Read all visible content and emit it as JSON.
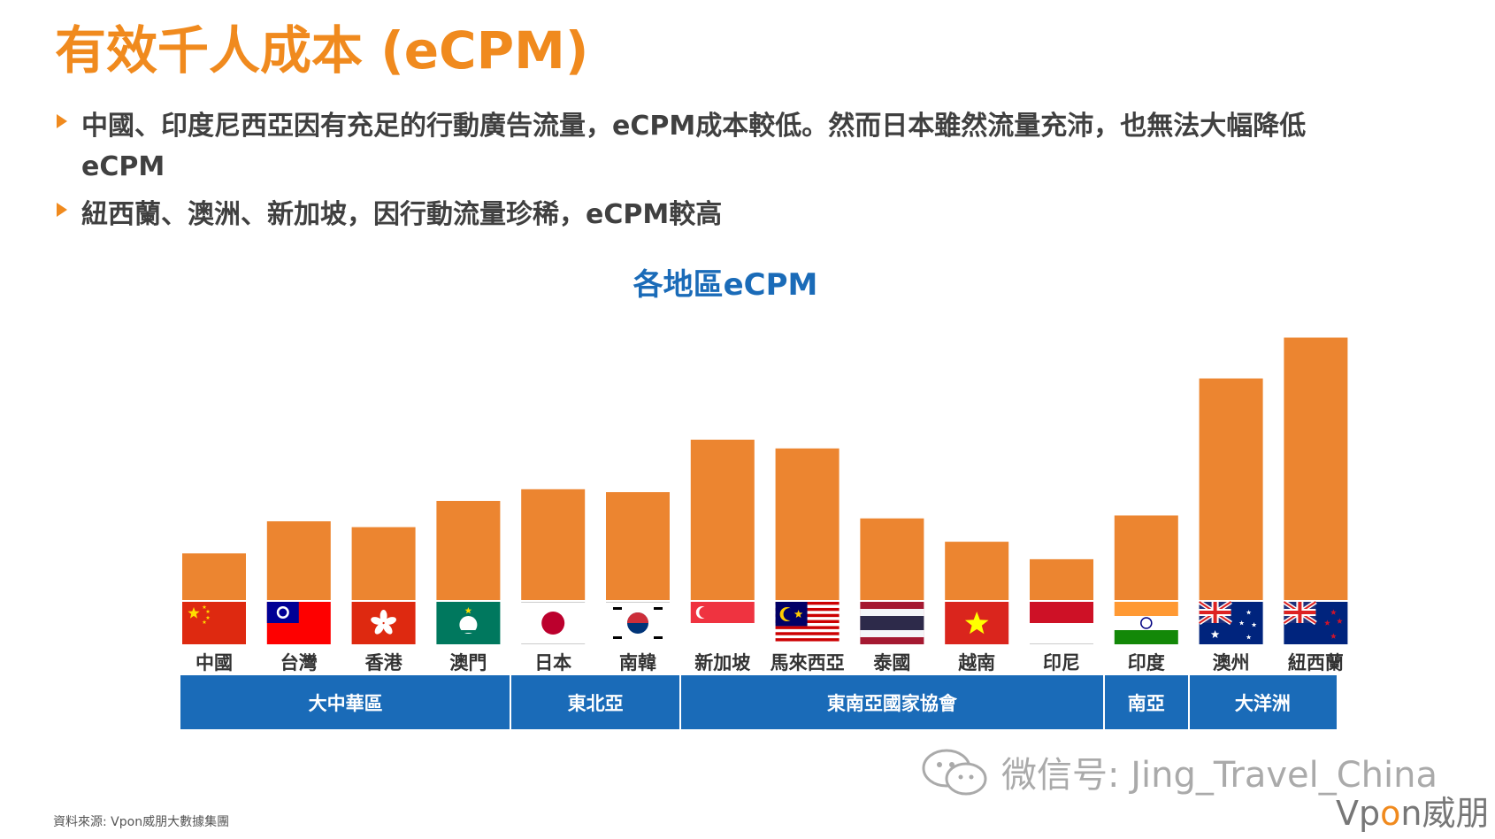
{
  "title": "有效千人成本 (eCPM)",
  "bullets": [
    "中國、印度尼西亞因有充足的行動廣告流量，eCPM成本較低。然而日本雖然流量充沛，也無法大幅降低eCPM",
    "紐西蘭、澳洲、新加坡，因行動流量珍稀，eCPM較高"
  ],
  "chart_data": {
    "type": "bar",
    "title": "各地區eCPM",
    "categories": [
      "中國",
      "台灣",
      "香港",
      "澳門",
      "日本",
      "南韓",
      "新加坡",
      "馬來西亞",
      "泰國",
      "越南",
      "印尼",
      "印度",
      "澳州",
      "紐西蘭"
    ],
    "values": [
      16,
      27,
      25,
      34,
      38,
      37,
      55,
      52,
      28,
      20,
      14,
      29,
      76,
      90
    ],
    "ylim": [
      0,
      95
    ],
    "bar_color": "#EC8530",
    "xlabel": "",
    "ylabel": "",
    "flags": [
      "china-flag",
      "taiwan-flag",
      "hong-kong-flag",
      "macau-flag",
      "japan-flag",
      "south-korea-flag",
      "singapore-flag",
      "malaysia-flag",
      "thailand-flag",
      "vietnam-flag",
      "indonesia-flag",
      "india-flag",
      "australia-flag",
      "new-zealand-flag"
    ],
    "regions": [
      {
        "label": "大中華區",
        "span": [
          0,
          3
        ]
      },
      {
        "label": "東北亞",
        "span": [
          4,
          5
        ]
      },
      {
        "label": "東南亞國家協會",
        "span": [
          6,
          10
        ]
      },
      {
        "label": "南亞",
        "span": [
          11,
          11
        ]
      },
      {
        "label": "大洋洲",
        "span": [
          12,
          13
        ]
      }
    ]
  },
  "colors": {
    "accent": "#F08A1E",
    "region": "#1A6BB8",
    "text": "#404040"
  },
  "watermark": "微信号: Jing_Travel_China",
  "logo": {
    "brand_v": "Vp",
    "brand_o": "o",
    "brand_n": "n",
    "brand_cn": "威朋"
  },
  "source": "資料來源: Vpon威朋大數據集團"
}
